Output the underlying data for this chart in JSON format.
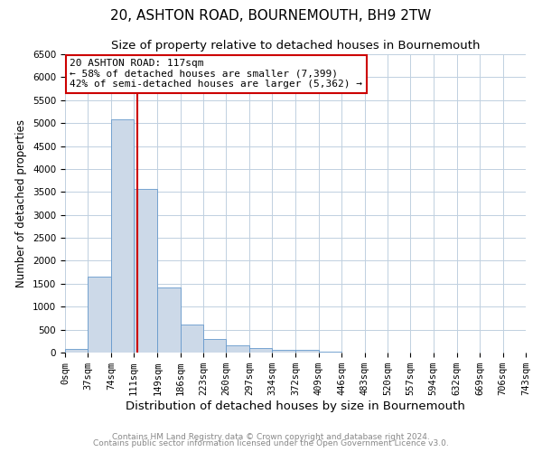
{
  "title": "20, ASHTON ROAD, BOURNEMOUTH, BH9 2TW",
  "subtitle": "Size of property relative to detached houses in Bournemouth",
  "xlabel": "Distribution of detached houses by size in Bournemouth",
  "ylabel": "Number of detached properties",
  "bar_edges": [
    0,
    37,
    74,
    111,
    149,
    186,
    223,
    260,
    297,
    334,
    372,
    409,
    446,
    483,
    520,
    557,
    594,
    632,
    669,
    706,
    743
  ],
  "bar_heights": [
    75,
    1650,
    5075,
    3575,
    1425,
    620,
    300,
    155,
    100,
    55,
    50,
    25,
    0,
    0,
    0,
    0,
    0,
    0,
    0,
    0
  ],
  "bar_color": "#ccd9e8",
  "bar_edge_color": "#6699cc",
  "red_line_x": 117,
  "ylim": [
    0,
    6500
  ],
  "yticks": [
    0,
    500,
    1000,
    1500,
    2000,
    2500,
    3000,
    3500,
    4000,
    4500,
    5000,
    5500,
    6000,
    6500
  ],
  "xtick_labels": [
    "0sqm",
    "37sqm",
    "74sqm",
    "111sqm",
    "149sqm",
    "186sqm",
    "223sqm",
    "260sqm",
    "297sqm",
    "334sqm",
    "372sqm",
    "409sqm",
    "446sqm",
    "483sqm",
    "520sqm",
    "557sqm",
    "594sqm",
    "632sqm",
    "669sqm",
    "706sqm",
    "743sqm"
  ],
  "annotation_title": "20 ASHTON ROAD: 117sqm",
  "annotation_line1": "← 58% of detached houses are smaller (7,399)",
  "annotation_line2": "42% of semi-detached houses are larger (5,362) →",
  "annotation_box_color": "#ffffff",
  "annotation_box_edge": "#cc0000",
  "footer1": "Contains HM Land Registry data © Crown copyright and database right 2024.",
  "footer2": "Contains public sector information licensed under the Open Government Licence v3.0.",
  "bg_color": "#ffffff",
  "grid_color": "#c0d0e0",
  "title_fontsize": 11,
  "subtitle_fontsize": 9.5,
  "xlabel_fontsize": 9.5,
  "ylabel_fontsize": 8.5,
  "tick_fontsize": 7.5,
  "footer_fontsize": 6.5,
  "ann_fontsize": 8.0
}
